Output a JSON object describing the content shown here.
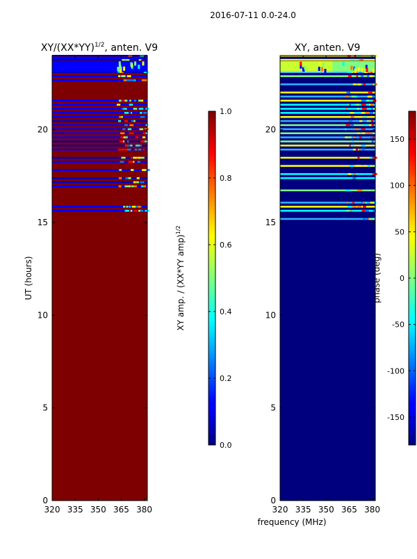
{
  "figure": {
    "suptitle": "2016-07-11 0.0-24.0",
    "xlabel": "frequency (MHz)"
  },
  "colors": {
    "background": "#ffffff",
    "axis": "#000000",
    "dark_red": "#7f0000",
    "navy": "#00007f",
    "jet": [
      "#00007f",
      "#0000ff",
      "#007fff",
      "#00ffff",
      "#7fff7f",
      "#ffff00",
      "#ff7f00",
      "#ff0000",
      "#7f0000"
    ]
  },
  "chart_data": [
    {
      "type": "heatmap",
      "title_main": "XY/(XX*YY)",
      "title_exp": "1/2",
      "title_suffix": ", anten. V9",
      "ylabel": "UT (hours)",
      "xlabel": "",
      "xlim": [
        320,
        382
      ],
      "ylim": [
        0,
        24
      ],
      "xticks": [
        "320",
        "335",
        "350",
        "365",
        "380"
      ],
      "yticks": [
        "0",
        "5",
        "10",
        "15",
        "20"
      ],
      "background_value": 1.0,
      "colorbar": {
        "label_main": "XY amp. / (XX*YY amp)",
        "label_exp": "1/2",
        "range": [
          0.0,
          1.0
        ],
        "ticks": [
          "0.0",
          "0.2",
          "0.4",
          "0.6",
          "0.8",
          "1.0"
        ]
      },
      "description_of_data": "Normalized amplitude is ~1.0 (dark red) from 0 to ~14.9 UT and in many bands up to 24 UT; blue/low bands appear between ~14.9 and ~24 UT, with cyan/yellow values mostly at 362-380 MHz."
    },
    {
      "type": "heatmap",
      "title": "XY, anten. V9",
      "ylabel": "",
      "xlabel": "frequency (MHz)",
      "xlim": [
        320,
        382
      ],
      "ylim": [
        0,
        24
      ],
      "xticks": [
        "320",
        "335",
        "350",
        "365",
        "380"
      ],
      "yticks": [
        "0",
        "5",
        "10",
        "15",
        "20"
      ],
      "background_value": -180,
      "colorbar": {
        "label": "phase (deg)",
        "range": [
          -180,
          180
        ],
        "ticks": [
          "-150",
          "-100",
          "-50",
          "0",
          "50",
          "100",
          "150"
        ]
      },
      "description_of_data": "Phase is ~-180 deg (navy) from 0 to ~14.9 UT; striped bands between ~14.9 and ~24 UT with values from cyan/green/yellow (~0 to 70 deg) and some red (~150 deg) and blue, especially at 362-382 MHz."
    }
  ]
}
